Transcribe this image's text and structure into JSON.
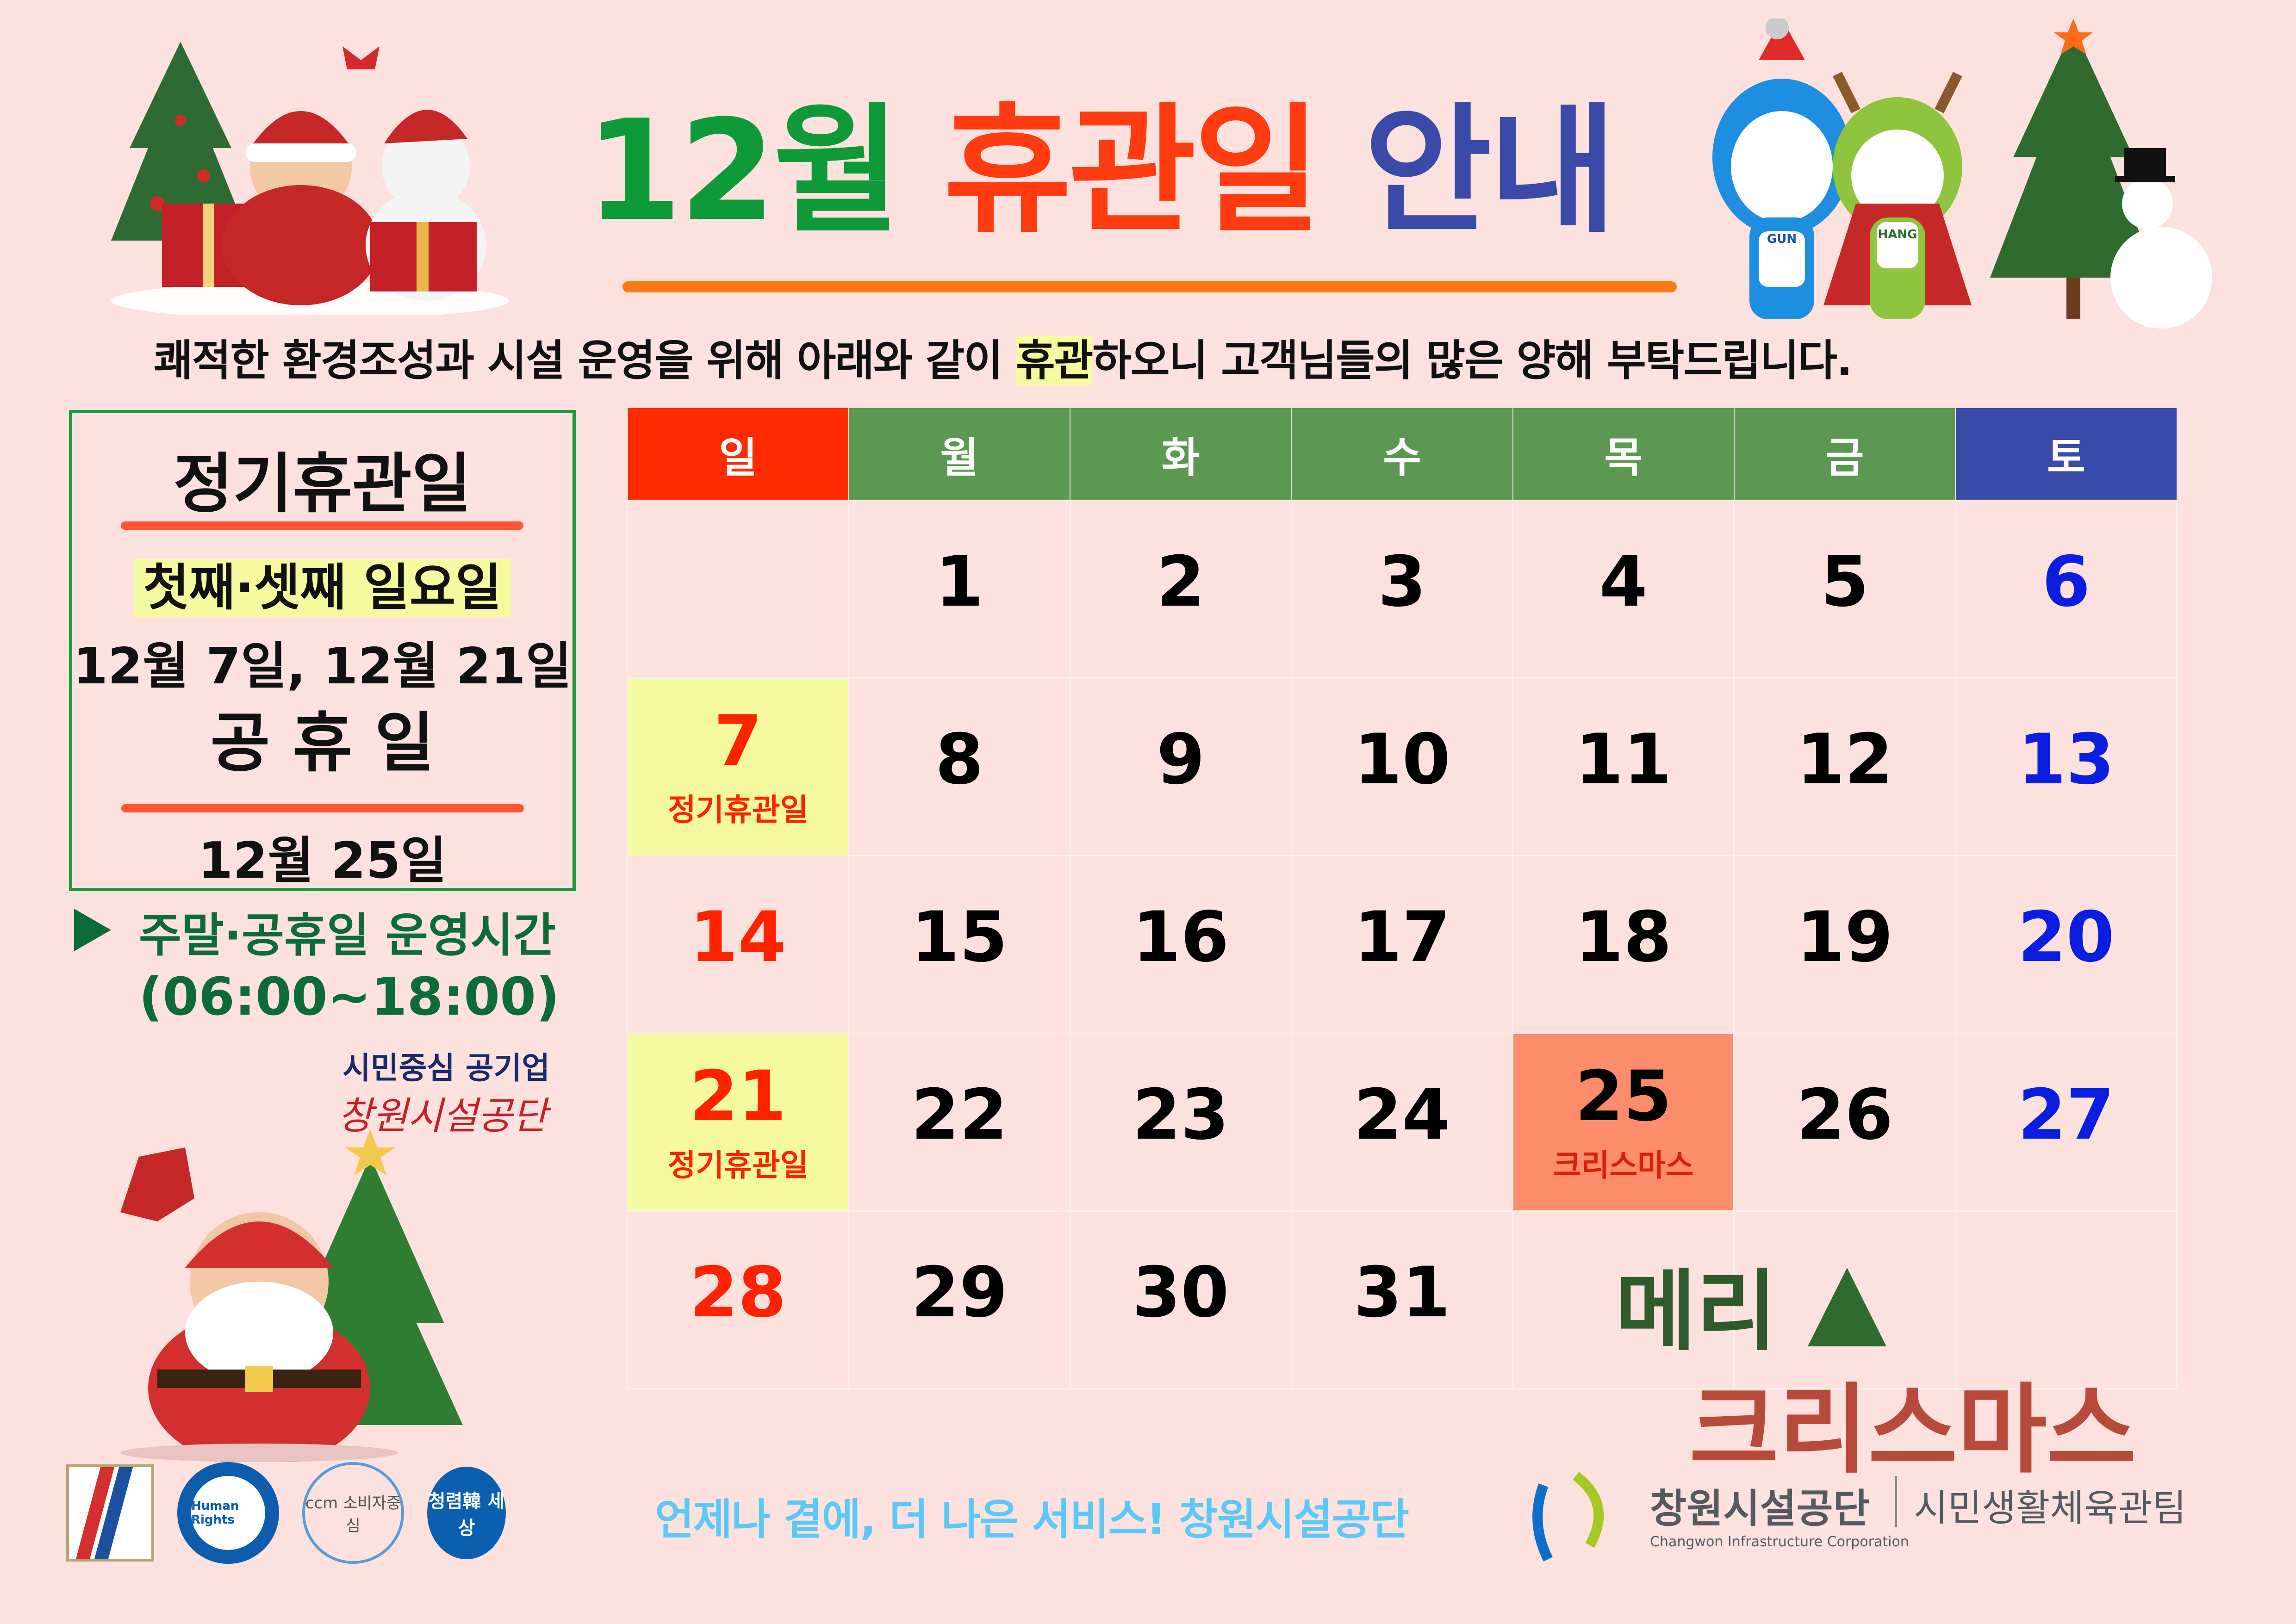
{
  "header": {
    "title_part1": "12월",
    "title_part2": "휴관일",
    "title_part3": "안내",
    "subtitle_before": "쾌적한 환경조성과 시설 운영을 위해 아래와 같이 ",
    "subtitle_highlight": "휴관",
    "subtitle_after": "하오니 고객님들의 많은 양해 부탁드립니다.",
    "colors": {
      "title_green": "#0f9a3a",
      "title_red": "#ff3b10",
      "title_blue": "#3a4aa8",
      "underline": "#f97a12"
    }
  },
  "info_box": {
    "regular_closure_title": "정기휴관일",
    "regular_closure_rule": "첫째·셋째 일요일",
    "regular_closure_dates": "12월 7일, 12월 21일",
    "public_holiday_title": "공 휴 일",
    "public_holiday_date": "12월 25일"
  },
  "operating_hours": {
    "label": "주말·공휴일 운영시간",
    "hours": "(06:00~18:00)",
    "icon": "play-triangle-icon"
  },
  "org_tagline": {
    "line1": "시민중심 공기업",
    "line2": "창원시설공단"
  },
  "calendar": {
    "weekdays": [
      "일",
      "월",
      "화",
      "수",
      "목",
      "금",
      "토"
    ],
    "header_colors": [
      "#ff2a00",
      "#5c9852",
      "#5c9852",
      "#5c9852",
      "#5c9852",
      "#5c9852",
      "#3a4aa8"
    ],
    "weeks": [
      [
        {
          "day": ""
        },
        {
          "day": "1"
        },
        {
          "day": "2"
        },
        {
          "day": "3"
        },
        {
          "day": "4"
        },
        {
          "day": "5"
        },
        {
          "day": "6"
        }
      ],
      [
        {
          "day": "7",
          "note": "정기휴관일",
          "bg": "#f5fa9f"
        },
        {
          "day": "8"
        },
        {
          "day": "9"
        },
        {
          "day": "10"
        },
        {
          "day": "11"
        },
        {
          "day": "12"
        },
        {
          "day": "13"
        }
      ],
      [
        {
          "day": "14"
        },
        {
          "day": "15"
        },
        {
          "day": "16"
        },
        {
          "day": "17"
        },
        {
          "day": "18"
        },
        {
          "day": "19"
        },
        {
          "day": "20"
        }
      ],
      [
        {
          "day": "21",
          "note": "정기휴관일",
          "bg": "#f5fa9f"
        },
        {
          "day": "22"
        },
        {
          "day": "23"
        },
        {
          "day": "24"
        },
        {
          "day": "25",
          "note": "크리스마스",
          "bg": "#fd8c6a"
        },
        {
          "day": "26"
        },
        {
          "day": "27"
        }
      ],
      [
        {
          "day": "28"
        },
        {
          "day": "29"
        },
        {
          "day": "30"
        },
        {
          "day": "31"
        },
        {
          "day": ""
        },
        {
          "day": ""
        },
        {
          "day": ""
        }
      ]
    ],
    "sunday_color": "#ff2200",
    "saturday_color": "#0a1ee0",
    "weekday_color": "#000000"
  },
  "greeting": {
    "line1": "메리",
    "line2": "크리스마스"
  },
  "footer": {
    "slogan": "언제나 곁에, 더 나은 서비스! 창원시설공단",
    "org_name_kr": "창원시설공단",
    "team_name": "시민생활체육관팀",
    "org_name_en": "Changwon Infrastructure Corporation",
    "mascot_labels": [
      "GUN",
      "HANG"
    ],
    "cert_logos": [
      "ccm 소비자중심",
      "Human Rights",
      "청렴韓 세상"
    ]
  }
}
